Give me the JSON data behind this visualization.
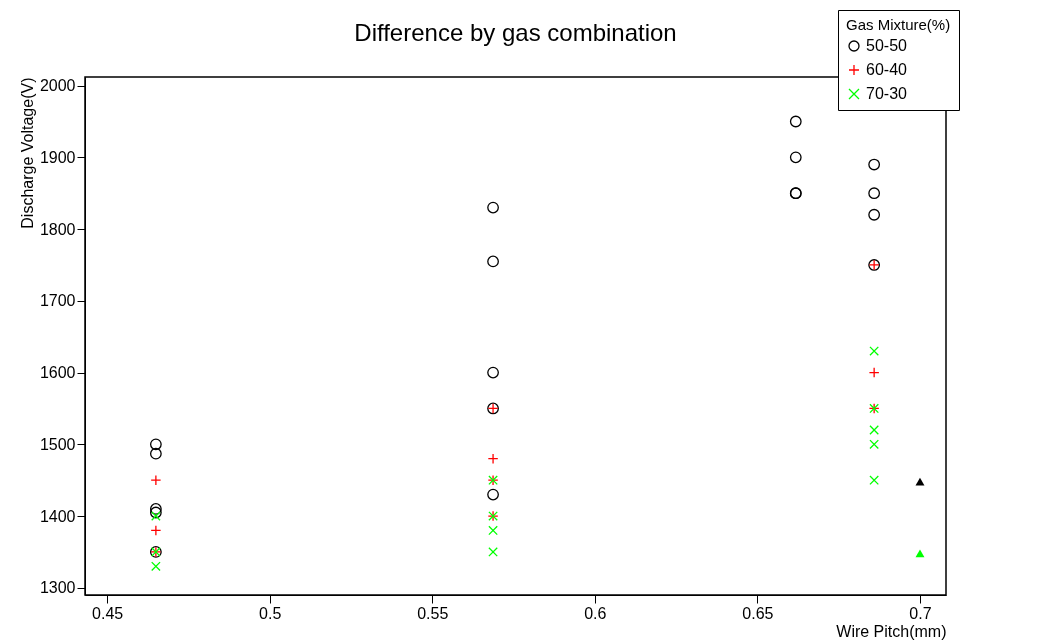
{
  "chart_data": {
    "type": "scatter",
    "title": "Difference by gas combination",
    "xlabel": "Wire Pitch(mm)",
    "ylabel": "Discharge Voltage(V)",
    "legend_title": "Gas Mixture(%)",
    "legend": "top right",
    "grid": false,
    "xlim": [
      0.4432,
      0.708
    ],
    "xticks": [
      0.45,
      0.5,
      0.55,
      0.6,
      0.65,
      0.7
    ],
    "ylim": [
      1290,
      2012
    ],
    "yticks": [
      1300,
      1400,
      1500,
      1600,
      1700,
      1800,
      1900,
      2000
    ],
    "series": [
      {
        "name": "50-50",
        "color": "#000000",
        "marker": "circle",
        "x": [
          0.465,
          0.465,
          0.465,
          0.465,
          0.465,
          0.5687,
          0.5687,
          0.5687,
          0.5687,
          0.5687,
          0.6618,
          0.6618,
          0.6618,
          0.6618,
          0.6859,
          0.6859,
          0.6859,
          0.6859
        ],
        "values": [
          1500,
          1487,
          1410,
          1405,
          1350,
          1830,
          1755,
          1600,
          1550,
          1430,
          1950,
          1900,
          1850,
          1850,
          1890,
          1850,
          1820,
          1750
        ]
      },
      {
        "name": "60-40",
        "color": "#ff0000",
        "marker": "plus",
        "x": [
          0.465,
          0.465,
          0.465,
          0.5687,
          0.5687,
          0.5687,
          0.5687,
          0.6859,
          0.6859,
          0.6859
        ],
        "values": [
          1450,
          1380,
          1350,
          1550,
          1480,
          1450,
          1400,
          1750,
          1600,
          1550
        ]
      },
      {
        "name": "70-30",
        "color": "#00ff00",
        "marker": "cross",
        "x": [
          0.465,
          0.465,
          0.465,
          0.5687,
          0.5687,
          0.5687,
          0.5687,
          0.6859,
          0.6859,
          0.6859,
          0.6859,
          0.6859
        ],
        "values": [
          1400,
          1350,
          1330,
          1450,
          1400,
          1380,
          1350,
          1630,
          1550,
          1520,
          1500,
          1450
        ]
      },
      {
        "color": "#000000",
        "marker": "triangle",
        "x": [
          0.7
        ],
        "values": [
          1448
        ]
      },
      {
        "color": "#00ff00",
        "marker": "triangle",
        "x": [
          0.7
        ],
        "values": [
          1348
        ]
      }
    ]
  }
}
